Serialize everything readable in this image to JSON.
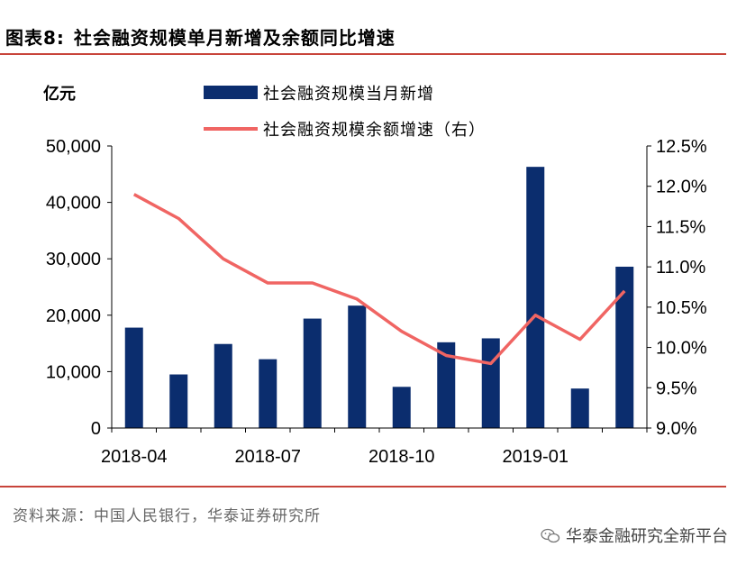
{
  "header": {
    "figure_no": "图表8:",
    "title": "社会融资规模单月新增及余额同比增速"
  },
  "footer": {
    "source": "资料来源：中国人民银行，华泰证券研究所",
    "watermark": "华泰金融研究全新平台",
    "watermark_icon": "wechat-icon"
  },
  "colors": {
    "bar": "#0b2d6e",
    "line": "#f06563",
    "rule": "#c8443a"
  },
  "chart_data": {
    "type": "bar+line",
    "unit_left": "亿元",
    "categories": [
      "2018-04",
      "2018-05",
      "2018-06",
      "2018-07",
      "2018-08",
      "2018-09",
      "2018-10",
      "2018-11",
      "2018-12",
      "2019-01",
      "2019-02",
      "2019-03"
    ],
    "x_tick_labels": [
      "2018-04",
      "2018-07",
      "2018-10",
      "2019-01"
    ],
    "series": [
      {
        "name": "社会融资规模当月新增",
        "type": "bar",
        "axis": "left",
        "values": [
          17800,
          9500,
          14900,
          12200,
          19400,
          21700,
          7300,
          15200,
          15900,
          46300,
          7000,
          28600
        ]
      },
      {
        "name": "社会融资规模余额增速（右）",
        "type": "line",
        "axis": "right",
        "values": [
          11.9,
          11.6,
          11.1,
          10.8,
          10.8,
          10.6,
          10.2,
          9.9,
          9.8,
          10.4,
          10.1,
          10.7
        ]
      }
    ],
    "y_left": {
      "min": 0,
      "max": 50000,
      "ticks": [
        "0",
        "10,000",
        "20,000",
        "30,000",
        "40,000",
        "50,000"
      ]
    },
    "y_right": {
      "min": 9.0,
      "max": 12.5,
      "ticks": [
        "9.0%",
        "9.5%",
        "10.0%",
        "10.5%",
        "11.0%",
        "11.5%",
        "12.0%",
        "12.5%"
      ]
    },
    "legend_position": "top"
  }
}
